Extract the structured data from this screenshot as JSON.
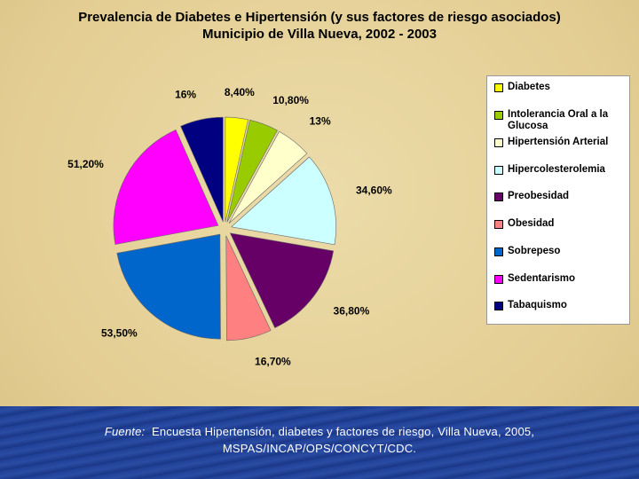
{
  "chart_data": {
    "type": "pie",
    "title": "Prevalencia de Diabetes e Hipertensión (y sus factores de riesgo asociados)",
    "subtitle": "Municipio de Villa Nueva, 2002 - 2003",
    "categories": [
      "Diabetes",
      "Intolerancia Oral a la Glucosa",
      "Hipertensión Arterial",
      "Hipercolesterolemia",
      "Preobesidad",
      "Obesidad",
      "Sobrepeso",
      "Sedentarismo",
      "Tabaquismo"
    ],
    "values": [
      8.4,
      10.8,
      13,
      34.6,
      36.8,
      16.7,
      53.5,
      51.2,
      16
    ],
    "value_labels": [
      "8,40%",
      "10,80%",
      "13%",
      "34,60%",
      "36,80%",
      "16,70%",
      "53,50%",
      "51,20%",
      "16%"
    ],
    "colors": [
      "#ffff00",
      "#99cc00",
      "#ffffcc",
      "#ccffff",
      "#660066",
      "#ff8080",
      "#0066cc",
      "#ff00ff",
      "#000080"
    ],
    "legend": "right"
  },
  "source": {
    "label": "Fuente:",
    "text": "Encuesta Hipertensión, diabetes y factores de riesgo, Villa Nueva, 2005, MSPAS/INCAP/OPS/CONCYT/CDC."
  }
}
